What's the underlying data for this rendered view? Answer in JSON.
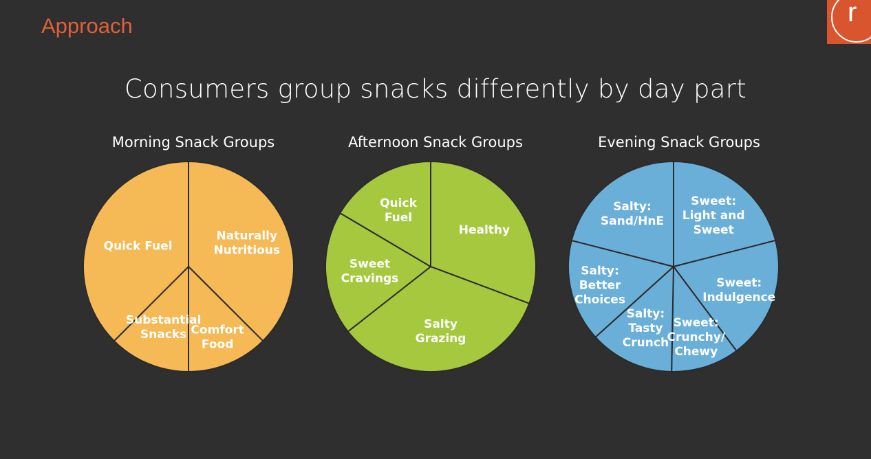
{
  "section_label": "Approach",
  "logo_letter": "r",
  "headline": "Consumers group snacks differently by day part",
  "chart_data": [
    {
      "type": "pie",
      "title": "Morning Snack Groups",
      "color": "#f5b955",
      "labels": [
        "Naturally Nutritious",
        "Comfort Food",
        "Substantial Snacks",
        "Quick Fuel"
      ],
      "values": [
        37.5,
        12.5,
        12.5,
        37.5
      ]
    },
    {
      "type": "pie",
      "title": "Afternoon Snack Groups",
      "color": "#a6c83f",
      "labels": [
        "Healthy",
        "Salty Grazing",
        "Sweet Cravings",
        "Quick Fuel"
      ],
      "values": [
        30.7,
        33.7,
        19.1,
        16.5
      ]
    },
    {
      "type": "pie",
      "title": "Evening Snack Groups",
      "color": "#6aafd8",
      "labels": [
        "Sweet: Light and Sweet",
        "Sweet: Indulgence",
        "Sweet: Crunchy/ Chewy",
        "Salty: Tasty Crunch",
        "Salty: Better Choices",
        "Salty: Sand/HnE"
      ],
      "values": [
        21.0,
        18.8,
        10.5,
        13.0,
        15.7,
        21.0
      ]
    }
  ]
}
